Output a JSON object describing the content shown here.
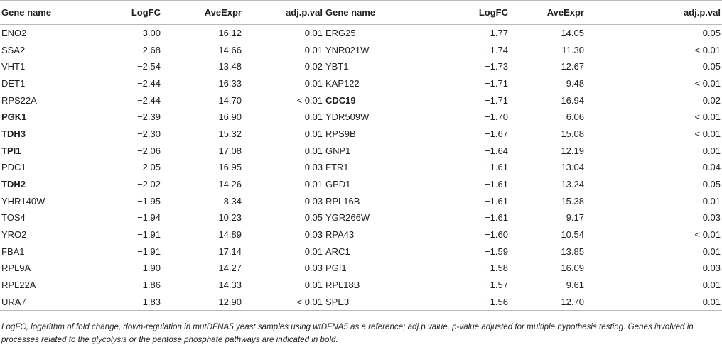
{
  "headers": [
    "Gene name",
    "LogFC",
    "AveExpr",
    "adj.p.val",
    "Gene name",
    "LogFC",
    "AveExpr",
    "adj.p.val"
  ],
  "rows": [
    {
      "g1": "ENO2",
      "b1": false,
      "f1": "−3.00",
      "a1": "16.12",
      "p1": "0.01",
      "g2": "ERG25",
      "b2": false,
      "f2": "−1.77",
      "a2": "14.05",
      "p2": "0.05"
    },
    {
      "g1": "SSA2",
      "b1": false,
      "f1": "−2.68",
      "a1": "14.66",
      "p1": "0.01",
      "g2": "YNR021W",
      "b2": false,
      "f2": "−1.74",
      "a2": "11.30",
      "p2": "< 0.01"
    },
    {
      "g1": "VHT1",
      "b1": false,
      "f1": "−2.54",
      "a1": "13.48",
      "p1": "0.02",
      "g2": "YBT1",
      "b2": false,
      "f2": "−1.73",
      "a2": "12.67",
      "p2": "0.05"
    },
    {
      "g1": "DET1",
      "b1": false,
      "f1": "−2.44",
      "a1": "16.33",
      "p1": "0.01",
      "g2": "KAP122",
      "b2": false,
      "f2": "−1.71",
      "a2": "9.48",
      "p2": "< 0.01"
    },
    {
      "g1": "RPS22A",
      "b1": false,
      "f1": "−2.44",
      "a1": "14.70",
      "p1": "< 0.01",
      "g2": "CDC19",
      "b2": true,
      "f2": "−1.71",
      "a2": "16.94",
      "p2": "0.02"
    },
    {
      "g1": "PGK1",
      "b1": true,
      "f1": "−2.39",
      "a1": "16.90",
      "p1": "0.01",
      "g2": "YDR509W",
      "b2": false,
      "f2": "−1.70",
      "a2": "6.06",
      "p2": "< 0.01"
    },
    {
      "g1": "TDH3",
      "b1": true,
      "f1": "−2.30",
      "a1": "15.32",
      "p1": "0.01",
      "g2": "RPS9B",
      "b2": false,
      "f2": "−1.67",
      "a2": "15.08",
      "p2": "< 0.01"
    },
    {
      "g1": "TPI1",
      "b1": true,
      "f1": "−2.06",
      "a1": "17.08",
      "p1": "0.01",
      "g2": "GNP1",
      "b2": false,
      "f2": "−1.64",
      "a2": "12.19",
      "p2": "0.01"
    },
    {
      "g1": "PDC1",
      "b1": false,
      "f1": "−2.05",
      "a1": "16.95",
      "p1": "0.03",
      "g2": "FTR1",
      "b2": false,
      "f2": "−1.61",
      "a2": "13.04",
      "p2": "0.04"
    },
    {
      "g1": "TDH2",
      "b1": true,
      "f1": "−2.02",
      "a1": "14.26",
      "p1": "0.01",
      "g2": "GPD1",
      "b2": false,
      "f2": "−1.61",
      "a2": "13.24",
      "p2": "0.05"
    },
    {
      "g1": "YHR140W",
      "b1": false,
      "f1": "−1.95",
      "a1": "8.34",
      "p1": "0.03",
      "g2": "RPL16B",
      "b2": false,
      "f2": "−1.61",
      "a2": "15.38",
      "p2": "0.01"
    },
    {
      "g1": "TOS4",
      "b1": false,
      "f1": "−1.94",
      "a1": "10.23",
      "p1": "0.05",
      "g2": "YGR266W",
      "b2": false,
      "f2": "−1.61",
      "a2": "9.17",
      "p2": "0.03"
    },
    {
      "g1": "YRO2",
      "b1": false,
      "f1": "−1.91",
      "a1": "14.89",
      "p1": "0.03",
      "g2": "RPA43",
      "b2": false,
      "f2": "−1.60",
      "a2": "10.54",
      "p2": "< 0.01"
    },
    {
      "g1": "FBA1",
      "b1": false,
      "f1": "−1.91",
      "a1": "17.14",
      "p1": "0.01",
      "g2": "ARC1",
      "b2": false,
      "f2": "−1.59",
      "a2": "13.85",
      "p2": "0.01"
    },
    {
      "g1": "RPL9A",
      "b1": false,
      "f1": "−1.90",
      "a1": "14.27",
      "p1": "0.03",
      "g2": "PGI1",
      "b2": false,
      "f2": "−1.58",
      "a2": "16.09",
      "p2": "0.03"
    },
    {
      "g1": "RPL22A",
      "b1": false,
      "f1": "−1.86",
      "a1": "14.33",
      "p1": "0.01",
      "g2": "RPL18B",
      "b2": false,
      "f2": "−1.57",
      "a2": "9.61",
      "p2": "0.01"
    },
    {
      "g1": "URA7",
      "b1": false,
      "f1": "−1.83",
      "a1": "12.90",
      "p1": "< 0.01",
      "g2": "SPE3",
      "b2": false,
      "f2": "−1.56",
      "a2": "12.70",
      "p2": "0.01"
    }
  ],
  "footnote": "LogFC, logarithm of fold change, down-regulation in mutDFNA5 yeast samples using wtDFNA5 as a reference; adj.p.value, p-value adjusted for multiple hypothesis testing. Genes involved in processes related to the glycolysis or the pentose phosphate pathways are indicated in bold."
}
